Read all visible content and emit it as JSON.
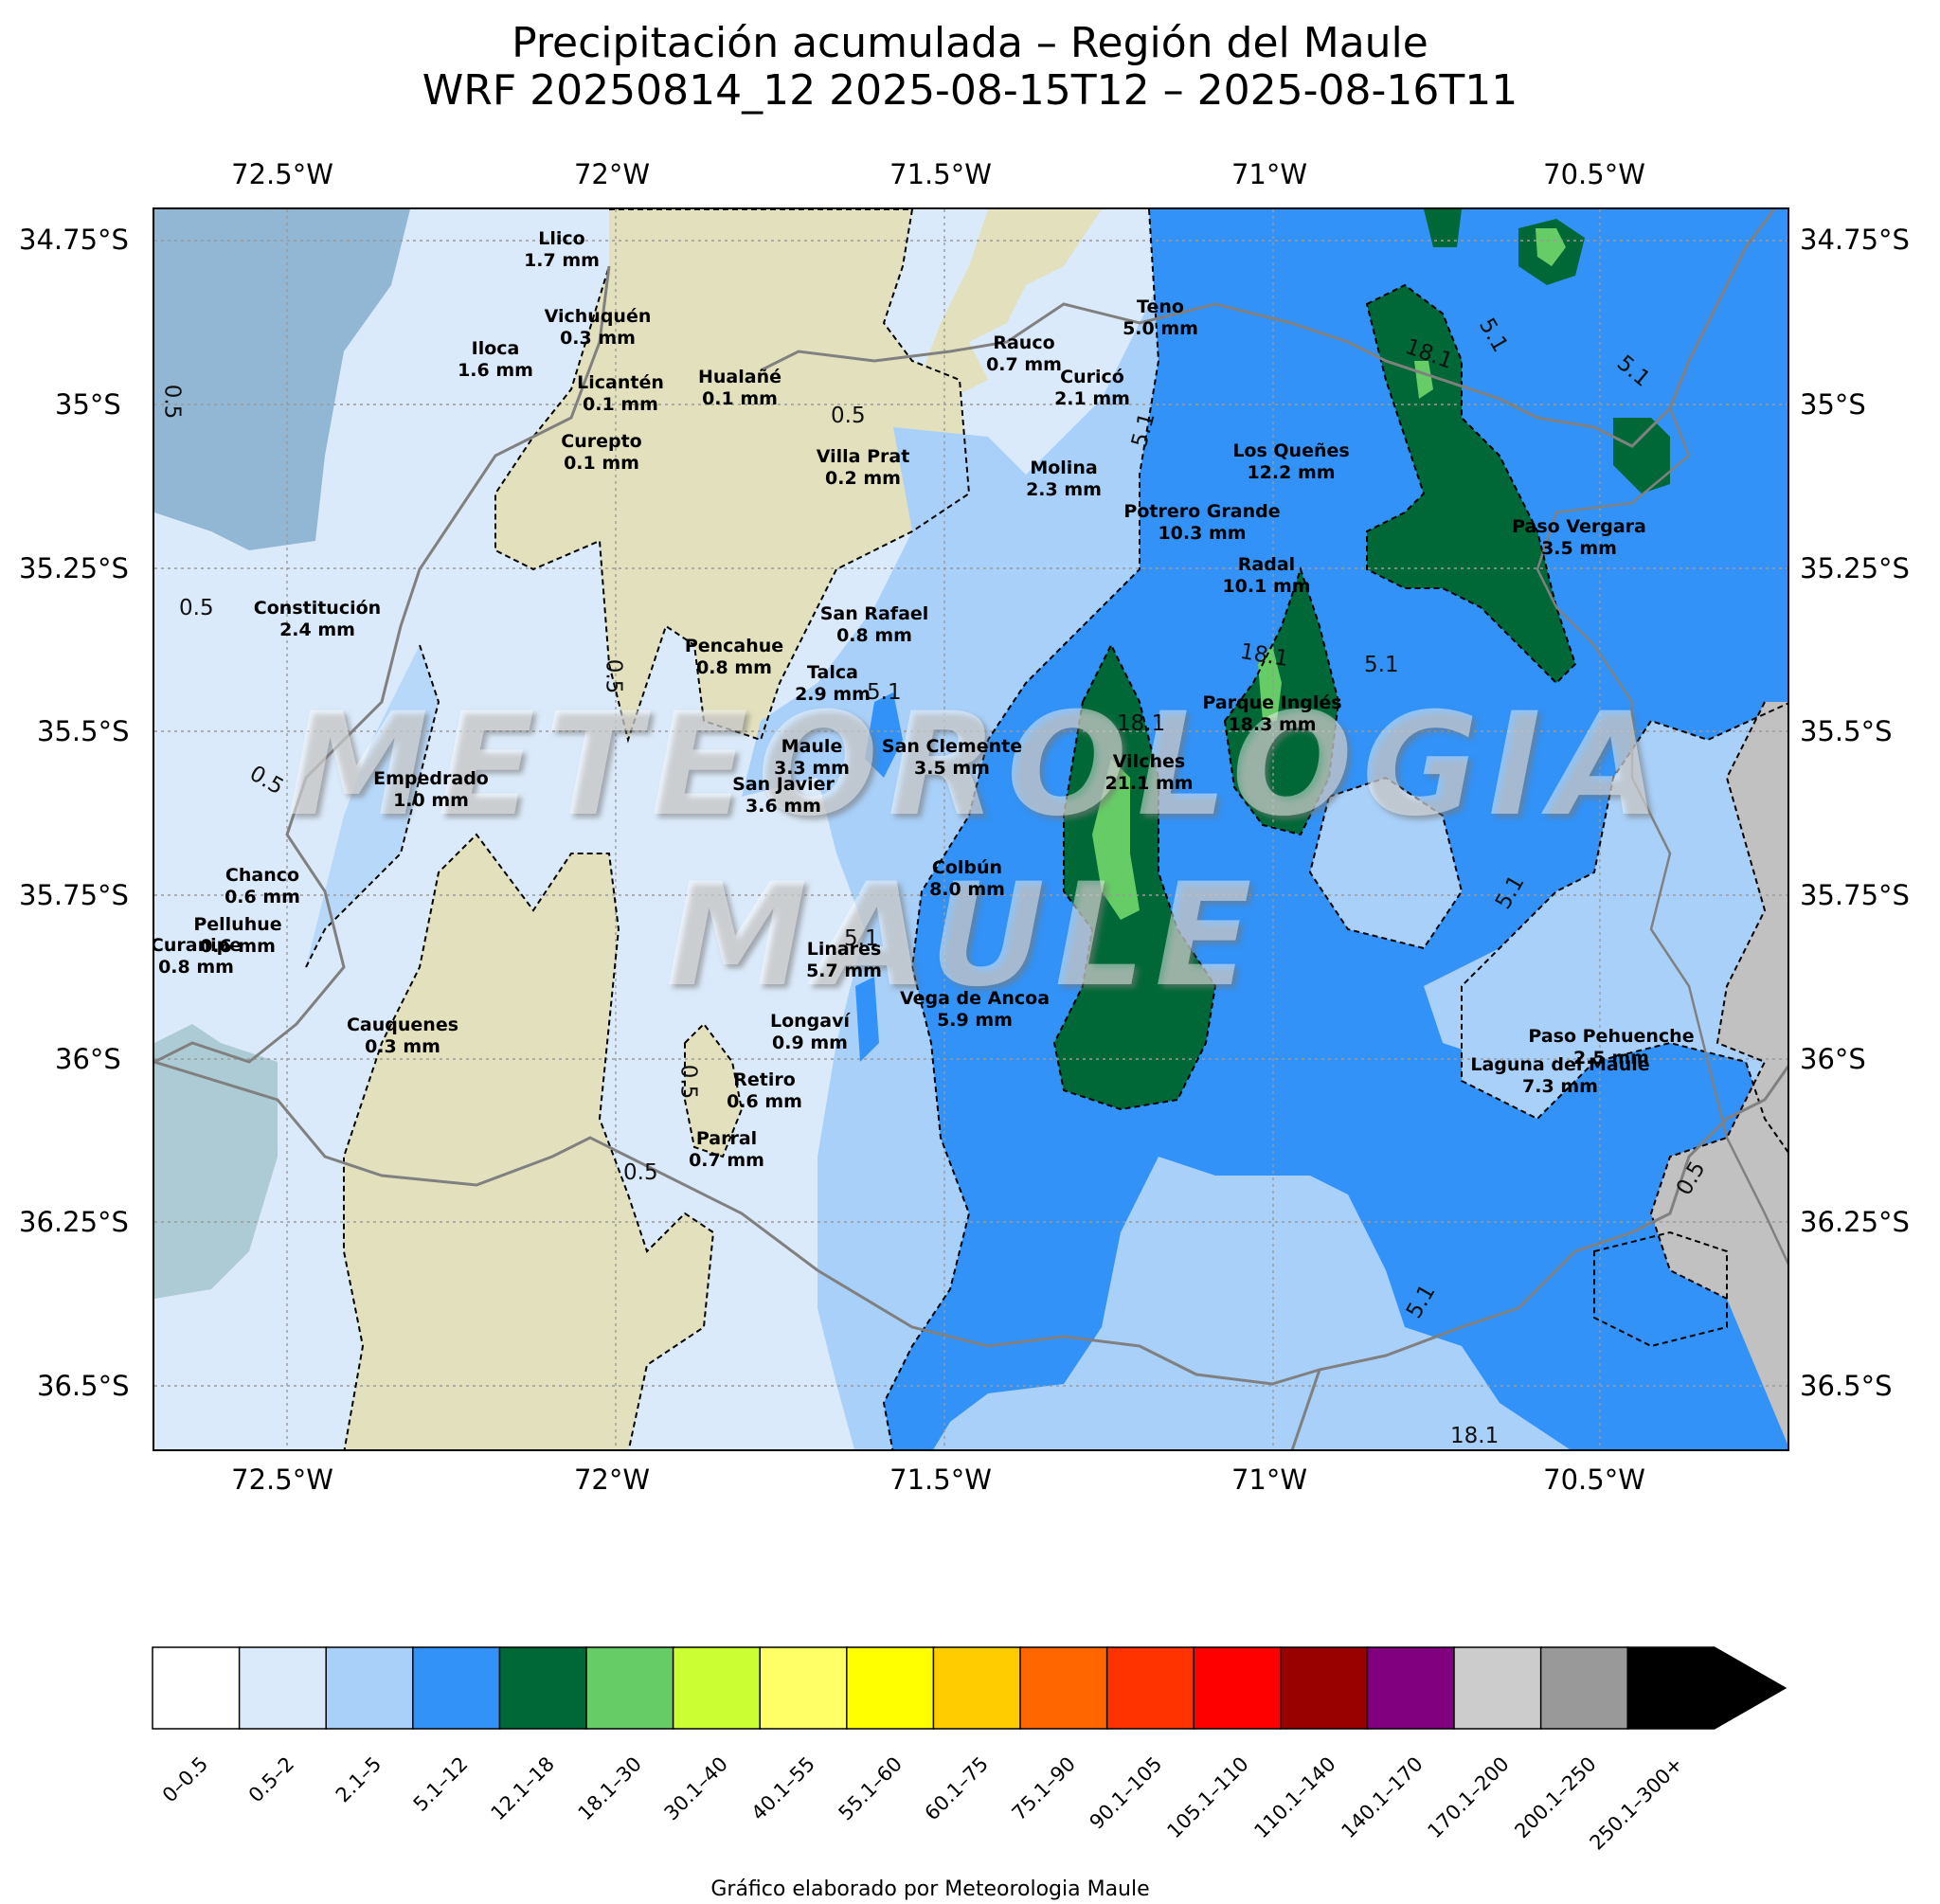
{
  "title": {
    "line1": "Precipitación acumulada – Región del Maule",
    "line2": "WRF 20250814_12  2025-08-15T12 – 2025-08-16T11"
  },
  "axes": {
    "lon_ticks": [
      "72.5°W",
      "72°W",
      "71.5°W",
      "71°W",
      "70.5°W"
    ],
    "lat_ticks": [
      "34.75°S",
      "35°S",
      "35.25°S",
      "35.5°S",
      "35.75°S",
      "36°S",
      "36.25°S",
      "36.5°S"
    ],
    "grid": true
  },
  "watermark": {
    "line1": "METEOROLOGIA",
    "line2": "MAULE"
  },
  "stations": [
    {
      "name": "Llico",
      "value": "1.7 mm"
    },
    {
      "name": "Vichuquén",
      "value": "0.3 mm"
    },
    {
      "name": "Iloca",
      "value": "1.6 mm"
    },
    {
      "name": "Licantén",
      "value": "0.1 mm"
    },
    {
      "name": "Hualañé",
      "value": "0.1 mm"
    },
    {
      "name": "Curepto",
      "value": "0.1 mm"
    },
    {
      "name": "Villa Prat",
      "value": "0.2 mm"
    },
    {
      "name": "Rauco",
      "value": "0.7 mm"
    },
    {
      "name": "Teno",
      "value": "5.0 mm"
    },
    {
      "name": "Curicó",
      "value": "2.1 mm"
    },
    {
      "name": "Molina",
      "value": "2.3 mm"
    },
    {
      "name": "Los Queñes",
      "value": "12.2 mm"
    },
    {
      "name": "Potrero Grande",
      "value": "10.3 mm"
    },
    {
      "name": "Paso Vergara",
      "value": "3.5 mm"
    },
    {
      "name": "Radal",
      "value": "10.1 mm"
    },
    {
      "name": "Constitución",
      "value": "2.4 mm"
    },
    {
      "name": "San Rafael",
      "value": "0.8 mm"
    },
    {
      "name": "Pencahue",
      "value": "0.8 mm"
    },
    {
      "name": "Talca",
      "value": "2.9 mm"
    },
    {
      "name": "Parque Inglés",
      "value": "18.3 mm"
    },
    {
      "name": "Maule",
      "value": "3.3 mm"
    },
    {
      "name": "San Clemente",
      "value": "3.5 mm"
    },
    {
      "name": "Vilches",
      "value": "21.1 mm"
    },
    {
      "name": "San Javier",
      "value": "3.6 mm"
    },
    {
      "name": "Empedrado",
      "value": "1.0 mm"
    },
    {
      "name": "Colbún",
      "value": "8.0 mm"
    },
    {
      "name": "Chanco",
      "value": "0.6 mm"
    },
    {
      "name": "Pelluhue",
      "value": "0.6 mm"
    },
    {
      "name": "Curanipe",
      "value": "0.8 mm"
    },
    {
      "name": "Linares",
      "value": "5.7 mm"
    },
    {
      "name": "Vega de Ancoa",
      "value": "5.9 mm"
    },
    {
      "name": "Cauquenes",
      "value": "0.3 mm"
    },
    {
      "name": "Longaví",
      "value": "0.9 mm"
    },
    {
      "name": "Retiro",
      "value": "0.6 mm"
    },
    {
      "name": "Parral",
      "value": "0.7 mm"
    },
    {
      "name": "Paso Pehuenche",
      "value": "2.5 mm"
    },
    {
      "name": "Laguna del Maule",
      "value": "7.3 mm"
    }
  ],
  "contour_labels": [
    "0.5",
    "0.5",
    "0.5",
    "0.5",
    "0.5",
    "0.5",
    "0.5",
    "0.5",
    "5.1",
    "5.1",
    "5.1",
    "5.1",
    "5.1",
    "5.1",
    "5.1",
    "5.1",
    "18.1",
    "18.1",
    "18.1"
  ],
  "colorbar": {
    "bins": [
      {
        "label": "0–0.5",
        "color": "#ffffff"
      },
      {
        "label": "0.5–2",
        "color": "#dbeafa"
      },
      {
        "label": "2.1–5",
        "color": "#a9d0f9"
      },
      {
        "label": "5.1–12",
        "color": "#3292f7"
      },
      {
        "label": "12.1–18",
        "color": "#006837"
      },
      {
        "label": "18.1–30",
        "color": "#66cc66"
      },
      {
        "label": "30.1–40",
        "color": "#ccff33"
      },
      {
        "label": "40.1–55",
        "color": "#ffff66"
      },
      {
        "label": "55.1–60",
        "color": "#ffff00"
      },
      {
        "label": "60.1–75",
        "color": "#ffcc00"
      },
      {
        "label": "75.1–90",
        "color": "#ff6600"
      },
      {
        "label": "90.1–105",
        "color": "#ff3300"
      },
      {
        "label": "105.1–110",
        "color": "#ff0000"
      },
      {
        "label": "110.1–140",
        "color": "#990000"
      },
      {
        "label": "140.1–170",
        "color": "#800080"
      },
      {
        "label": "170.1–200",
        "color": "#cccccc"
      },
      {
        "label": "200.1–250",
        "color": "#999999"
      },
      {
        "label": "250.1–300+",
        "color": "#000000"
      }
    ]
  },
  "credit": "Gráfico elaborado por Meteorologia Maule",
  "colors": {
    "land_tan": "#e3e1bd",
    "ocean_tint": "#7aa6c8",
    "border_line": "#808080",
    "argentina_gray": "#c1c1c1"
  }
}
